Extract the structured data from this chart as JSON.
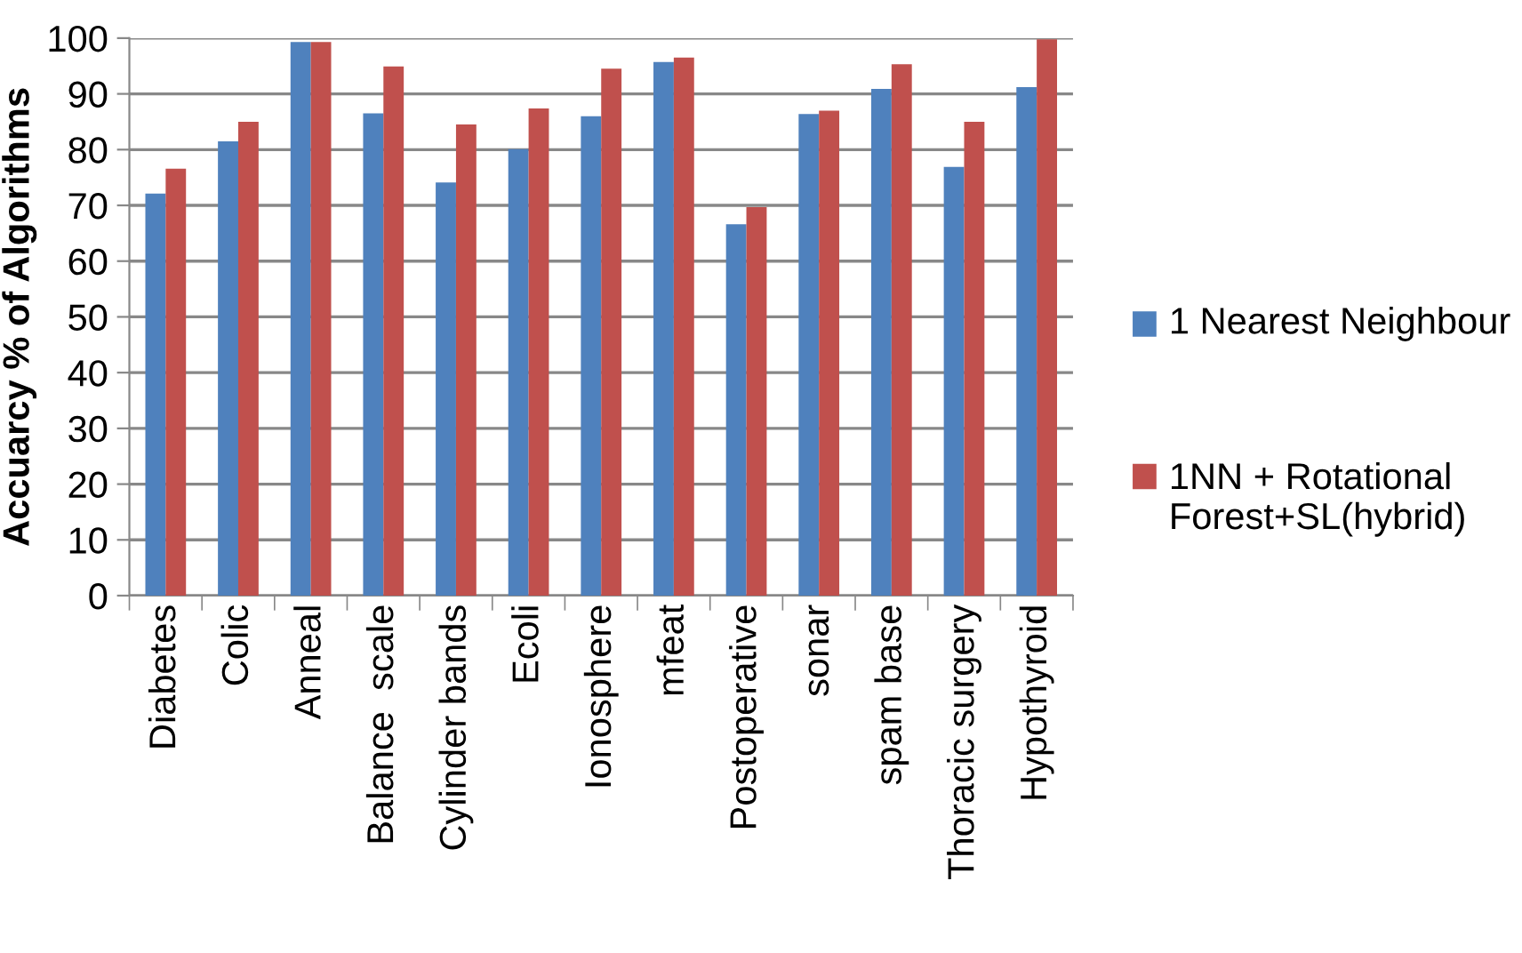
{
  "chart_data": {
    "type": "bar",
    "ylabel": "Accuarcy % of Algorithms",
    "categories": [
      "Diabetes",
      "Colic",
      "Anneal",
      "Balance  scale",
      "Cylinder bands",
      "Ecoli",
      "Ionosphere",
      "mfeat",
      "Postoperative",
      "sonar",
      "spam base",
      "Thoracic surgery",
      "Hypothyroid"
    ],
    "series": [
      {
        "name": "1 Nearest Neighbour",
        "color": "#4f81bd",
        "values": [
          72.1,
          81.5,
          99.3,
          86.5,
          74.1,
          80.1,
          86.0,
          95.7,
          66.6,
          86.4,
          90.9,
          76.9,
          91.2
        ]
      },
      {
        "name": "1NN + Rotational Forest+SL(hybrid)",
        "color": "#c0504d",
        "values": [
          76.6,
          85.0,
          99.3,
          94.9,
          84.5,
          87.4,
          94.5,
          96.5,
          69.7,
          87.0,
          95.3,
          85.0,
          99.8
        ]
      }
    ],
    "ylim": [
      0,
      100
    ],
    "yticks": [
      0,
      10,
      20,
      30,
      40,
      50,
      60,
      70,
      80,
      90,
      100
    ],
    "grid": "y",
    "legend": "right"
  }
}
